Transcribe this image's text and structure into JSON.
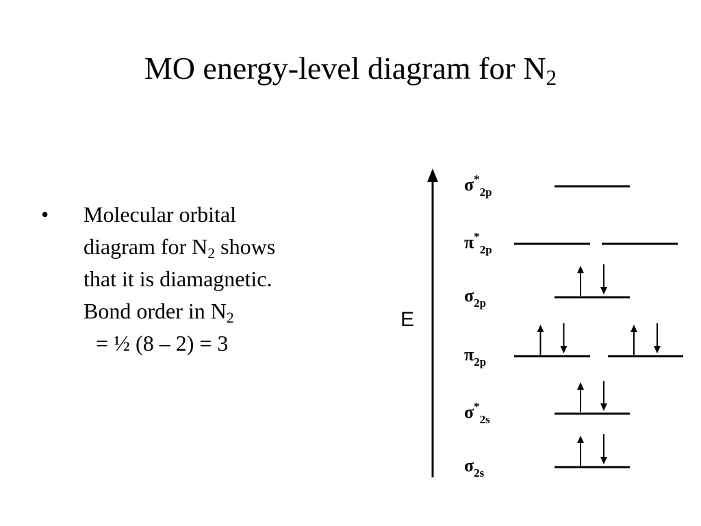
{
  "title": {
    "main": "MO energy-level diagram for N",
    "subscript": "2"
  },
  "bullets": [
    {
      "mark": "•",
      "line1": "Molecular orbital",
      "line2_pre": "diagram for N",
      "line2_sub": "2",
      "line2_post": " shows",
      "line3": "that it is diamagnetic."
    }
  ],
  "bond_order": {
    "label_pre": "Bond order in N",
    "label_sub": "2",
    "equation": "= ½ (8 – 2) = 3"
  },
  "diagram": {
    "axis_label": "E",
    "orbitals": [
      {
        "id": "sigma-star-2p",
        "symbol": "σ",
        "star": "*",
        "sub": "2p",
        "levels": 1,
        "electrons": [
          ""
        ]
      },
      {
        "id": "pi-star-2p",
        "symbol": "π",
        "star": "*",
        "sub": "2p",
        "levels": 2,
        "electrons": [
          "",
          ""
        ]
      },
      {
        "id": "sigma-2p",
        "symbol": "σ",
        "star": "",
        "sub": "2p",
        "levels": 1,
        "electrons": [
          "updown"
        ]
      },
      {
        "id": "pi-2p",
        "symbol": "π",
        "star": "",
        "sub": "2p",
        "levels": 2,
        "electrons": [
          "updown",
          "updown"
        ]
      },
      {
        "id": "sigma-star-2s",
        "symbol": "σ",
        "star": "*",
        "sub": "2s",
        "levels": 1,
        "electrons": [
          "updown"
        ]
      },
      {
        "id": "sigma-2s",
        "symbol": "σ",
        "star": "",
        "sub": "2s",
        "levels": 1,
        "electrons": [
          "updown"
        ]
      }
    ]
  }
}
